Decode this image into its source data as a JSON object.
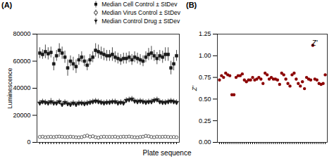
{
  "chart_data": [
    {
      "type": "scatter",
      "title": "(A)",
      "xlabel": "Plate sequence",
      "ylabel": "Luminescence",
      "x": [
        1,
        2,
        3,
        4,
        5,
        6,
        7,
        8,
        9,
        10,
        11,
        12,
        13,
        14,
        15,
        16,
        17,
        18,
        19,
        20,
        21,
        22,
        23,
        24,
        25,
        26,
        27,
        28,
        29,
        30,
        31,
        32,
        33,
        34,
        35,
        36,
        37,
        38,
        39,
        40,
        41,
        42,
        43,
        44,
        45,
        46,
        47,
        48,
        49,
        50
      ],
      "xlim": [
        0,
        51
      ],
      "ylim": [
        0,
        80000
      ],
      "yticks": [
        0,
        20000,
        40000,
        60000,
        80000
      ],
      "tick_labels": "y",
      "legend": "upper right",
      "series": [
        {
          "name": "Median Cell Control ± StDev",
          "color": "#1a1a1a",
          "marker": "square",
          "values": [
            66000,
            65000,
            67000,
            65500,
            66500,
            58000,
            64000,
            68000,
            66000,
            63000,
            55000,
            60000,
            58000,
            56000,
            61000,
            63000,
            60000,
            57000,
            61000,
            63000,
            68000,
            67000,
            66000,
            65000,
            64000,
            64000,
            65000,
            63000,
            62000,
            61000,
            62000,
            62000,
            63000,
            61000,
            63000,
            62000,
            61000,
            60000,
            63000,
            65000,
            66000,
            64000,
            62000,
            64000,
            63000,
            65000,
            65000,
            55000,
            58000,
            64000
          ],
          "errors": [
            4000,
            3500,
            5000,
            4500,
            4000,
            5000,
            4000,
            5000,
            4500,
            4500,
            6000,
            4000,
            5000,
            5000,
            4000,
            4000,
            4000,
            4000,
            4000,
            4000,
            5000,
            5000,
            4500,
            4500,
            4000,
            4000,
            5000,
            4000,
            4000,
            4000,
            4000,
            4000,
            4000,
            4000,
            4000,
            4000,
            4000,
            4000,
            4000,
            4500,
            5000,
            4000,
            4500,
            4000,
            4500,
            5000,
            5000,
            5000,
            5000,
            4000
          ]
        },
        {
          "name": "Median Virus Control ± StDev",
          "color": "#1a1a1a",
          "marker": "open_circle",
          "values": [
            4000,
            4200,
            3800,
            4000,
            4100,
            3900,
            4200,
            4300,
            4100,
            4000,
            3900,
            4200,
            4000,
            3800,
            3700,
            3900,
            4500,
            5000,
            4200,
            4500,
            3800,
            3500,
            4000,
            4200,
            4000,
            4100,
            4000,
            4200,
            3800,
            4000,
            4200,
            4100,
            4300,
            4000,
            3800,
            3700,
            4000,
            4200,
            4800,
            4500,
            4000,
            3800,
            4200,
            4000,
            4100,
            4200,
            4000,
            3900,
            4000,
            3800
          ],
          "errors": [
            500,
            500,
            500,
            500,
            500,
            500,
            500,
            500,
            500,
            500,
            500,
            500,
            500,
            500,
            500,
            500,
            600,
            700,
            600,
            600,
            500,
            500,
            500,
            500,
            500,
            500,
            500,
            500,
            500,
            500,
            500,
            500,
            500,
            500,
            500,
            500,
            500,
            500,
            600,
            600,
            500,
            500,
            500,
            500,
            500,
            500,
            500,
            500,
            500,
            500
          ]
        },
        {
          "name": "Median Control Drug ± StDev",
          "color": "#1a1a1a",
          "marker": "triangle_down",
          "values": [
            29000,
            30000,
            29500,
            29000,
            30000,
            29000,
            29000,
            30000,
            28000,
            29500,
            28500,
            28000,
            29000,
            28000,
            29000,
            29000,
            28500,
            29000,
            29500,
            30000,
            30500,
            30000,
            29500,
            29000,
            29500,
            29500,
            30000,
            30000,
            29000,
            29500,
            29000,
            31000,
            31500,
            32000,
            30500,
            30000,
            30500,
            30000,
            29500,
            30000,
            30000,
            31000,
            31500,
            30000,
            29500,
            29500,
            30000,
            30500,
            30000,
            29500
          ],
          "errors": [
            2000,
            2000,
            2000,
            2000,
            2500,
            2000,
            2000,
            2000,
            2000,
            2000,
            2000,
            2000,
            2000,
            2000,
            2000,
            2000,
            2000,
            2000,
            2000,
            2000,
            2000,
            2000,
            2000,
            2000,
            2000,
            2000,
            2000,
            2000,
            2000,
            2000,
            2000,
            2000,
            2000,
            2000,
            2000,
            2000,
            2000,
            2000,
            2000,
            2000,
            2000,
            2000,
            2000,
            2000,
            2000,
            2000,
            2000,
            2000,
            2000,
            2000
          ]
        }
      ]
    },
    {
      "type": "scatter",
      "title": "(B)",
      "ylabel": "Z’",
      "annotation": "Z'",
      "color": "#8b0000",
      "x": [
        1,
        2,
        3,
        4,
        5,
        6,
        7,
        8,
        9,
        10,
        11,
        12,
        13,
        14,
        15,
        16,
        17,
        18,
        19,
        20,
        21,
        22,
        23,
        24,
        25,
        26,
        27,
        28,
        29,
        30,
        31,
        32,
        33,
        34,
        35,
        36,
        37,
        38,
        39,
        40,
        41,
        42,
        43,
        44,
        45,
        46,
        47,
        48,
        49,
        50,
        51,
        52
      ],
      "xlim": [
        0,
        53
      ],
      "ylim": [
        0.0,
        1.25
      ],
      "yticks": [
        {
          "value": 0.0,
          "label": "0.00"
        },
        {
          "value": 0.25,
          "label": "0.25"
        },
        {
          "value": 0.5,
          "label": "0.50"
        },
        {
          "value": 0.75,
          "label": "0.75"
        },
        {
          "value": 1.0,
          "label": "1.00"
        },
        {
          "value": 1.25,
          "label": "1.25"
        }
      ],
      "tick_labels": "y",
      "values": [
        0.72,
        0.77,
        0.75,
        0.8,
        0.78,
        0.77,
        0.55,
        0.55,
        0.75,
        0.77,
        0.77,
        0.79,
        0.72,
        0.7,
        0.72,
        0.72,
        0.75,
        0.72,
        0.73,
        0.75,
        0.73,
        0.68,
        0.8,
        0.78,
        0.73,
        0.75,
        0.73,
        0.73,
        0.72,
        0.67,
        0.8,
        0.78,
        0.73,
        0.68,
        0.65,
        0.78,
        0.8,
        0.73,
        0.68,
        0.65,
        0.7,
        0.62,
        0.75,
        0.73,
        0.72,
        1.12,
        0.73,
        0.72,
        0.68,
        0.67,
        0.68,
        0.78
      ]
    }
  ]
}
